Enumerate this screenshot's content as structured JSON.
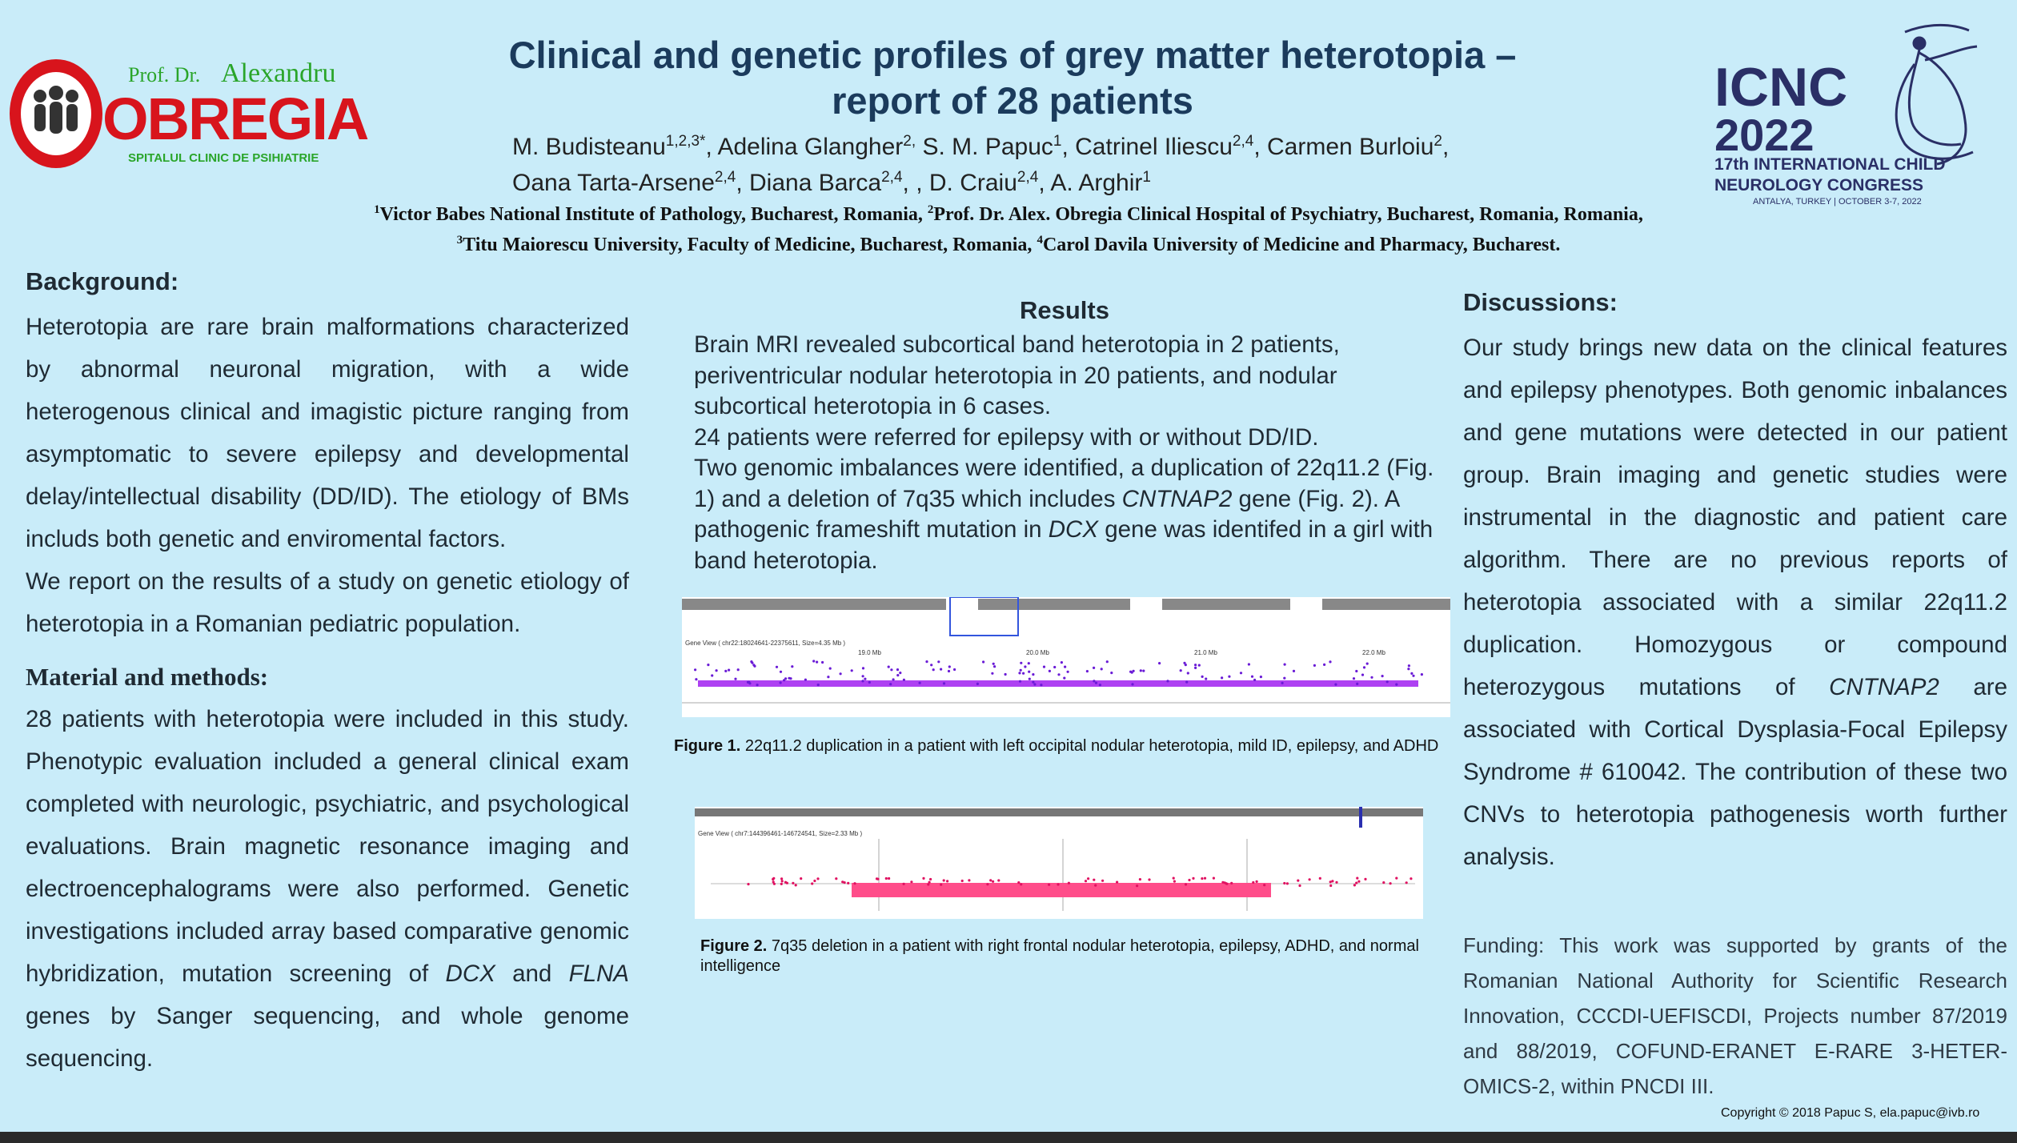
{
  "header": {
    "title_line1": "Clinical and genetic profiles of grey matter heterotopia –",
    "title_line2": "report of 28 patients",
    "authors_line1": [
      {
        "name": "M. Budisteanu",
        "sup": "1,2,3*"
      },
      {
        "name": ", Adelina Glangher",
        "sup": "2,"
      },
      {
        "name": " S. M. Papuc",
        "sup": "1"
      },
      {
        "name": ", Catrinel Iliescu",
        "sup": "2,4"
      },
      {
        "name": ", Carmen Burloiu",
        "sup": "2"
      },
      {
        "name": ",",
        "sup": ""
      }
    ],
    "authors_line2": [
      {
        "name": "Oana Tarta-Arsene",
        "sup": "2,4"
      },
      {
        "name": ", Diana Barca",
        "sup": "2,4"
      },
      {
        "name": ", , D. Craiu",
        "sup": "2,4"
      },
      {
        "name": ", A. Arghir",
        "sup": "1"
      }
    ],
    "affiliations_line1": [
      {
        "sup": "1",
        "text": "Victor Babes National Institute of Pathology, Bucharest, Romania, "
      },
      {
        "sup": "2",
        "text": "Prof. Dr. Alex. Obregia Clinical Hospital of Psychiatry, Bucharest, Romania, Romania,"
      }
    ],
    "affiliations_line2": [
      {
        "sup": "3",
        "text": "Titu Maiorescu University, Faculty of Medicine, Bucharest, Romania, "
      },
      {
        "sup": "4",
        "text": "Carol Davila University of Medicine and Pharmacy, Bucharest."
      }
    ]
  },
  "logo_left": {
    "prof": "Prof. Dr.",
    "name": "Alexandru",
    "brand": "OBREGIA",
    "sub": "SPITALUL CLINIC DE PSIHIATRIE"
  },
  "logo_right": {
    "line1": "ICNC",
    "line2": "2022",
    "congress1": "17th INTERNATIONAL CHILD",
    "congress2": "NEUROLOGY CONGRESS",
    "place": "ANTALYA, TURKEY | OCTOBER 3-7, 2022"
  },
  "background": {
    "heading": "Background:",
    "p1": "Heterotopia are rare brain malformations characterized by abnormal neuronal migration, with a wide heterogenous clinical and imagistic picture ranging from asymptomatic to severe epilepsy and developmental delay/intellectual disability (DD/ID). The etiology of BMs includs both genetic and enviromental factors.",
    "p2": "We report on the results of a study on genetic etiology of heterotopia in a Romanian pediatric population."
  },
  "methods": {
    "heading": "Material and methods:",
    "text_a": "28 patients with heterotopia were included in this study. Phenotypic evaluation included a general clinical exam completed with neurologic, psychiatric, and psychological evaluations. Brain magnetic resonance imaging and electroencephalograms were also performed. Genetic investigations included array based comparative genomic hybridization, mutation screening of ",
    "gene1": "DCX",
    "and": " and ",
    "gene2": "FLNA",
    "text_b": " genes by Sanger sequencing, and whole genome sequencing."
  },
  "results": {
    "heading": "Results",
    "p1": "Brain MRI revealed subcortical band heterotopia in 2 patients, periventricular nodular heterotopia in 20 patients, and nodular subcortical heterotopia in 6 cases.",
    "p2": "24 patients were referred for epilepsy with or without DD/ID.",
    "p3a": "Two genomic imbalances were identified, a duplication of 22q11.2 (Fig. 1) and a deletion of 7q35 which includes ",
    "p3gene": "CNTNAP2",
    "p3b": " gene (Fig. 2). A pathogenic frameshift mutation in ",
    "p3gene2": "DCX",
    "p3c": " gene was identifed in a girl with band heterotopia."
  },
  "figure1": {
    "label": "Figure 1.",
    "caption": " 22q11.2 duplication in a patient with left occipital nodular heterotopia, mild ID, epilepsy, and ADHD",
    "view_title": "Gene View ( chr22:18024641-22375611, Size=4.35 Mb )",
    "ticks": [
      "19.0 Mb",
      "20.0 Mb",
      "21.0 Mb",
      "22.0 Mb"
    ]
  },
  "figure2": {
    "label": "Figure 2.",
    "caption": " 7q35 deletion in a patient with right frontal nodular heterotopia, epilepsy, ADHD, and normal intelligence",
    "view_title": "Gene View ( chr7:144396461-146724541, Size=2.33 Mb )"
  },
  "discussions": {
    "heading": "Discussions:",
    "text_a": "Our study brings new data on the clinical features and epilepsy phenotypes. Both genomic inbalances and gene mutations were detected in our patient group. Brain imaging and genetic studies were instrumental in the diagnostic and patient care algorithm. There are no previous reports of heterotopia associated with a similar 22q11.2 duplication. Homozygous or compound heterozygous mutations of ",
    "gene": "CNTNAP2",
    "text_b": " are associated with Cortical Dysplasia-Focal Epilepsy Syndrome # 610042. The contribution of these two CNVs to heterotopia pathogenesis worth further analysis."
  },
  "funding": "Funding: This work was supported by grants of the Romanian National Authority for Scientific Research Innovation, CCCDI-UEFISCDI, Projects number 87/2019 and 88/2019, COFUND-ERANET E-RARE 3-HETER-OMICS-2, within PNCDI III.",
  "copyright": "Copyright © 2018 Papuc S, ela.papuc@ivb.ro",
  "colors": {
    "background": "#c9ecf9",
    "title": "#1b3b5c",
    "logo_red": "#d8141c",
    "logo_green": "#2aa52a",
    "icnc_navy": "#2a2f66",
    "dup_purple": "#a020f0",
    "del_pink": "#ff4d8a"
  }
}
